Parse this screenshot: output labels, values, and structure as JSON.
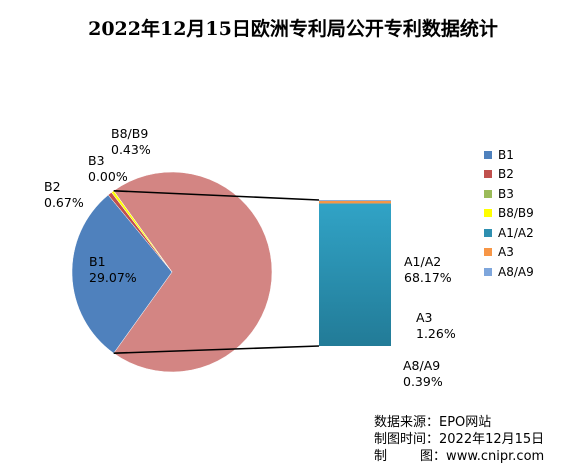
{
  "chart_data": {
    "type": "pie",
    "title": "2022年12月15日欧洲专利局公开专利数据统计",
    "slices": [
      {
        "name": "B1",
        "value": 29.07,
        "label": "29.07%",
        "color": "#4f81bd"
      },
      {
        "name": "B2",
        "value": 0.67,
        "label": "0.67%",
        "color": "#c0504d"
      },
      {
        "name": "B3",
        "value": 0.0,
        "label": "0.00%",
        "color": "#9bbb59"
      },
      {
        "name": "B8/B9",
        "value": 0.43,
        "label": "0.43%",
        "color": "#ffff00"
      },
      {
        "name": "A1/A2",
        "value": 68.17,
        "label": "68.17%",
        "color": "#2e8fb0"
      },
      {
        "name": "A3",
        "value": 1.26,
        "label": "1.26%",
        "color": "#f79646"
      },
      {
        "name": "A8/A9",
        "value": 0.39,
        "label": "0.39%",
        "color": "#7ea6dc"
      }
    ],
    "pie_slices": [
      "B1",
      "B2",
      "B3",
      "B8/B9"
    ],
    "other_slice_color": "#d38583",
    "bar_breakout": [
      "A1/A2",
      "A3",
      "A8/A9"
    ],
    "legend": [
      "B1",
      "B2",
      "B3",
      "B8/B9",
      "A1/A2",
      "A3",
      "A8/A9"
    ],
    "legend_position": "right"
  },
  "source": {
    "line1": "数据来源：EPO网站",
    "line2": "制图时间：2022年12月15日",
    "line3": "制        图：www.cnipr.com"
  }
}
